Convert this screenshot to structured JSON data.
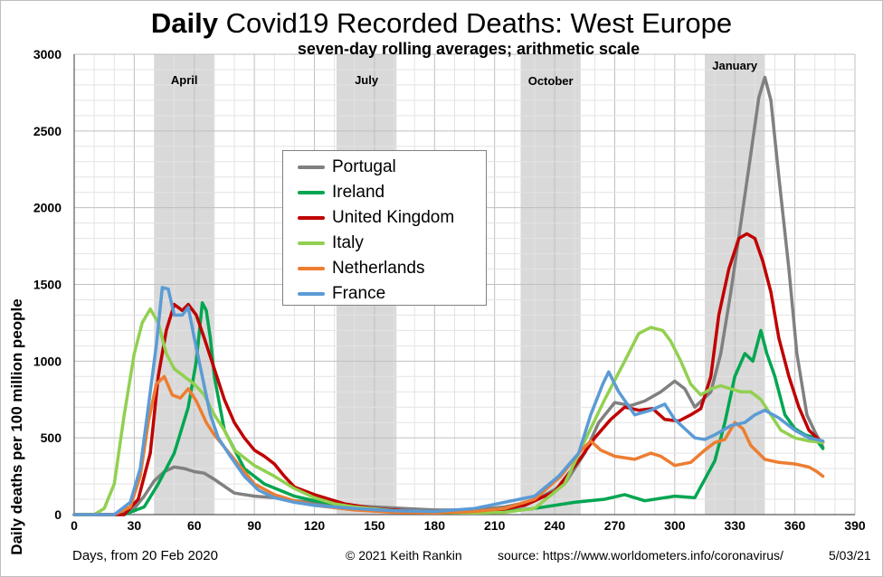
{
  "chart_data": {
    "type": "line",
    "title_bold": "Daily",
    "title_rest": " Covid19 Recorded Deaths: West Europe",
    "subtitle": "seven-day rolling averages; arithmetic scale",
    "ylabel": "Daily deaths per 100 million people",
    "xlabel": "Days, from 20 Feb 2020",
    "copyright": "© 2021  Keith  Rankin",
    "source": "source:  https://www.worldometers.info/coronavirus/",
    "date": "5/03/21",
    "xlim": [
      0,
      390
    ],
    "ylim": [
      0,
      3000
    ],
    "x_ticks": [
      "0",
      "30",
      "60",
      "90",
      "120",
      "150",
      "180",
      "210",
      "240",
      "270",
      "300",
      "330",
      "360",
      "390"
    ],
    "y_ticks": [
      "0",
      "500",
      "1000",
      "1500",
      "2000",
      "2500",
      "3000"
    ],
    "grid": true,
    "legend_position": "top-center",
    "shaded_months": [
      {
        "label": "April",
        "x0": 40,
        "x1": 70
      },
      {
        "label": "July",
        "x0": 131,
        "x1": 161
      },
      {
        "label": "October",
        "x0": 223,
        "x1": 253
      },
      {
        "label": "January",
        "x0": 315,
        "x1": 345
      }
    ],
    "series": [
      {
        "name": "Portugal",
        "color": "#808080",
        "points": [
          [
            0,
            0
          ],
          [
            20,
            0
          ],
          [
            30,
            40
          ],
          [
            35,
            120
          ],
          [
            40,
            220
          ],
          [
            45,
            280
          ],
          [
            50,
            310
          ],
          [
            55,
            300
          ],
          [
            60,
            280
          ],
          [
            65,
            270
          ],
          [
            70,
            230
          ],
          [
            80,
            140
          ],
          [
            90,
            120
          ],
          [
            100,
            110
          ],
          [
            110,
            90
          ],
          [
            120,
            80
          ],
          [
            135,
            60
          ],
          [
            150,
            50
          ],
          [
            165,
            40
          ],
          [
            180,
            30
          ],
          [
            200,
            30
          ],
          [
            215,
            50
          ],
          [
            230,
            90
          ],
          [
            245,
            200
          ],
          [
            255,
            400
          ],
          [
            262,
            600
          ],
          [
            270,
            730
          ],
          [
            278,
            710
          ],
          [
            285,
            740
          ],
          [
            293,
            800
          ],
          [
            300,
            870
          ],
          [
            305,
            820
          ],
          [
            310,
            700
          ],
          [
            318,
            800
          ],
          [
            323,
            1050
          ],
          [
            328,
            1450
          ],
          [
            333,
            1900
          ],
          [
            338,
            2350
          ],
          [
            342,
            2720
          ],
          [
            345,
            2850
          ],
          [
            348,
            2700
          ],
          [
            352,
            2200
          ],
          [
            357,
            1600
          ],
          [
            361,
            1050
          ],
          [
            366,
            650
          ],
          [
            370,
            540
          ],
          [
            374,
            440
          ]
        ]
      },
      {
        "name": "Ireland",
        "color": "#00a651",
        "points": [
          [
            0,
            0
          ],
          [
            25,
            0
          ],
          [
            35,
            50
          ],
          [
            42,
            200
          ],
          [
            50,
            400
          ],
          [
            57,
            700
          ],
          [
            61,
            1000
          ],
          [
            64,
            1380
          ],
          [
            66,
            1330
          ],
          [
            68,
            1150
          ],
          [
            70,
            900
          ],
          [
            75,
            550
          ],
          [
            85,
            300
          ],
          [
            95,
            200
          ],
          [
            110,
            120
          ],
          [
            120,
            90
          ],
          [
            140,
            50
          ],
          [
            160,
            20
          ],
          [
            180,
            10
          ],
          [
            210,
            15
          ],
          [
            230,
            40
          ],
          [
            250,
            80
          ],
          [
            265,
            100
          ],
          [
            275,
            130
          ],
          [
            285,
            90
          ],
          [
            300,
            120
          ],
          [
            310,
            110
          ],
          [
            320,
            350
          ],
          [
            325,
            600
          ],
          [
            330,
            900
          ],
          [
            335,
            1050
          ],
          [
            339,
            1000
          ],
          [
            343,
            1200
          ],
          [
            346,
            1050
          ],
          [
            350,
            900
          ],
          [
            355,
            650
          ],
          [
            360,
            560
          ],
          [
            365,
            520
          ],
          [
            370,
            500
          ],
          [
            374,
            430
          ]
        ]
      },
      {
        "name": "United Kingdom",
        "color": "#c00000",
        "points": [
          [
            0,
            0
          ],
          [
            25,
            0
          ],
          [
            32,
            100
          ],
          [
            38,
            400
          ],
          [
            42,
            900
          ],
          [
            46,
            1200
          ],
          [
            50,
            1370
          ],
          [
            54,
            1330
          ],
          [
            57,
            1370
          ],
          [
            61,
            1300
          ],
          [
            65,
            1150
          ],
          [
            70,
            950
          ],
          [
            75,
            750
          ],
          [
            80,
            600
          ],
          [
            85,
            500
          ],
          [
            90,
            420
          ],
          [
            95,
            380
          ],
          [
            100,
            330
          ],
          [
            105,
            250
          ],
          [
            110,
            180
          ],
          [
            120,
            130
          ],
          [
            135,
            70
          ],
          [
            150,
            40
          ],
          [
            170,
            20
          ],
          [
            190,
            15
          ],
          [
            210,
            25
          ],
          [
            225,
            60
          ],
          [
            240,
            150
          ],
          [
            252,
            350
          ],
          [
            260,
            500
          ],
          [
            268,
            620
          ],
          [
            275,
            700
          ],
          [
            282,
            680
          ],
          [
            289,
            690
          ],
          [
            295,
            620
          ],
          [
            302,
            610
          ],
          [
            308,
            650
          ],
          [
            313,
            690
          ],
          [
            318,
            900
          ],
          [
            322,
            1300
          ],
          [
            327,
            1600
          ],
          [
            332,
            1800
          ],
          [
            336,
            1830
          ],
          [
            340,
            1800
          ],
          [
            344,
            1650
          ],
          [
            348,
            1450
          ],
          [
            352,
            1150
          ],
          [
            357,
            900
          ],
          [
            362,
            700
          ],
          [
            367,
            550
          ],
          [
            371,
            500
          ],
          [
            374,
            470
          ]
        ]
      },
      {
        "name": "Italy",
        "color": "#92d050",
        "points": [
          [
            0,
            0
          ],
          [
            10,
            0
          ],
          [
            15,
            40
          ],
          [
            20,
            200
          ],
          [
            25,
            650
          ],
          [
            30,
            1050
          ],
          [
            34,
            1250
          ],
          [
            38,
            1340
          ],
          [
            42,
            1250
          ],
          [
            46,
            1050
          ],
          [
            50,
            950
          ],
          [
            55,
            900
          ],
          [
            60,
            850
          ],
          [
            65,
            780
          ],
          [
            70,
            650
          ],
          [
            75,
            550
          ],
          [
            80,
            420
          ],
          [
            90,
            320
          ],
          [
            100,
            250
          ],
          [
            110,
            170
          ],
          [
            120,
            110
          ],
          [
            130,
            70
          ],
          [
            140,
            50
          ],
          [
            160,
            25
          ],
          [
            180,
            15
          ],
          [
            200,
            10
          ],
          [
            215,
            15
          ],
          [
            230,
            40
          ],
          [
            245,
            200
          ],
          [
            255,
            480
          ],
          [
            265,
            750
          ],
          [
            275,
            1000
          ],
          [
            282,
            1180
          ],
          [
            288,
            1220
          ],
          [
            294,
            1200
          ],
          [
            298,
            1130
          ],
          [
            303,
            1000
          ],
          [
            308,
            850
          ],
          [
            313,
            780
          ],
          [
            318,
            820
          ],
          [
            323,
            840
          ],
          [
            328,
            820
          ],
          [
            333,
            800
          ],
          [
            338,
            800
          ],
          [
            343,
            750
          ],
          [
            348,
            650
          ],
          [
            353,
            550
          ],
          [
            360,
            500
          ],
          [
            367,
            480
          ],
          [
            374,
            470
          ]
        ]
      },
      {
        "name": "Netherlands",
        "color": "#ed7d31",
        "points": [
          [
            0,
            0
          ],
          [
            20,
            0
          ],
          [
            28,
            50
          ],
          [
            33,
            250
          ],
          [
            37,
            600
          ],
          [
            41,
            850
          ],
          [
            45,
            900
          ],
          [
            49,
            780
          ],
          [
            53,
            760
          ],
          [
            57,
            820
          ],
          [
            61,
            740
          ],
          [
            66,
            600
          ],
          [
            70,
            520
          ],
          [
            80,
            360
          ],
          [
            90,
            200
          ],
          [
            100,
            130
          ],
          [
            110,
            90
          ],
          [
            120,
            60
          ],
          [
            140,
            30
          ],
          [
            160,
            15
          ],
          [
            180,
            10
          ],
          [
            200,
            20
          ],
          [
            215,
            40
          ],
          [
            230,
            100
          ],
          [
            243,
            250
          ],
          [
            252,
            400
          ],
          [
            258,
            480
          ],
          [
            263,
            420
          ],
          [
            270,
            380
          ],
          [
            280,
            360
          ],
          [
            288,
            400
          ],
          [
            293,
            380
          ],
          [
            300,
            320
          ],
          [
            308,
            340
          ],
          [
            315,
            420
          ],
          [
            320,
            470
          ],
          [
            325,
            490
          ],
          [
            330,
            600
          ],
          [
            334,
            560
          ],
          [
            338,
            450
          ],
          [
            345,
            360
          ],
          [
            352,
            340
          ],
          [
            360,
            330
          ],
          [
            367,
            310
          ],
          [
            371,
            280
          ],
          [
            374,
            250
          ]
        ]
      },
      {
        "name": "France",
        "color": "#5b9bd5",
        "points": [
          [
            0,
            0
          ],
          [
            20,
            0
          ],
          [
            28,
            80
          ],
          [
            33,
            300
          ],
          [
            37,
            700
          ],
          [
            41,
            1100
          ],
          [
            44,
            1480
          ],
          [
            47,
            1470
          ],
          [
            50,
            1300
          ],
          [
            54,
            1300
          ],
          [
            57,
            1350
          ],
          [
            60,
            1150
          ],
          [
            64,
            900
          ],
          [
            68,
            650
          ],
          [
            72,
            500
          ],
          [
            78,
            380
          ],
          [
            85,
            250
          ],
          [
            92,
            160
          ],
          [
            100,
            110
          ],
          [
            110,
            80
          ],
          [
            120,
            60
          ],
          [
            140,
            40
          ],
          [
            160,
            25
          ],
          [
            180,
            20
          ],
          [
            200,
            40
          ],
          [
            215,
            80
          ],
          [
            230,
            120
          ],
          [
            242,
            250
          ],
          [
            252,
            400
          ],
          [
            258,
            650
          ],
          [
            264,
            850
          ],
          [
            267,
            930
          ],
          [
            272,
            800
          ],
          [
            280,
            650
          ],
          [
            288,
            680
          ],
          [
            295,
            720
          ],
          [
            300,
            620
          ],
          [
            305,
            560
          ],
          [
            310,
            500
          ],
          [
            315,
            490
          ],
          [
            320,
            520
          ],
          [
            328,
            580
          ],
          [
            335,
            600
          ],
          [
            340,
            650
          ],
          [
            345,
            680
          ],
          [
            352,
            630
          ],
          [
            360,
            550
          ],
          [
            367,
            500
          ],
          [
            374,
            480
          ]
        ]
      }
    ]
  }
}
